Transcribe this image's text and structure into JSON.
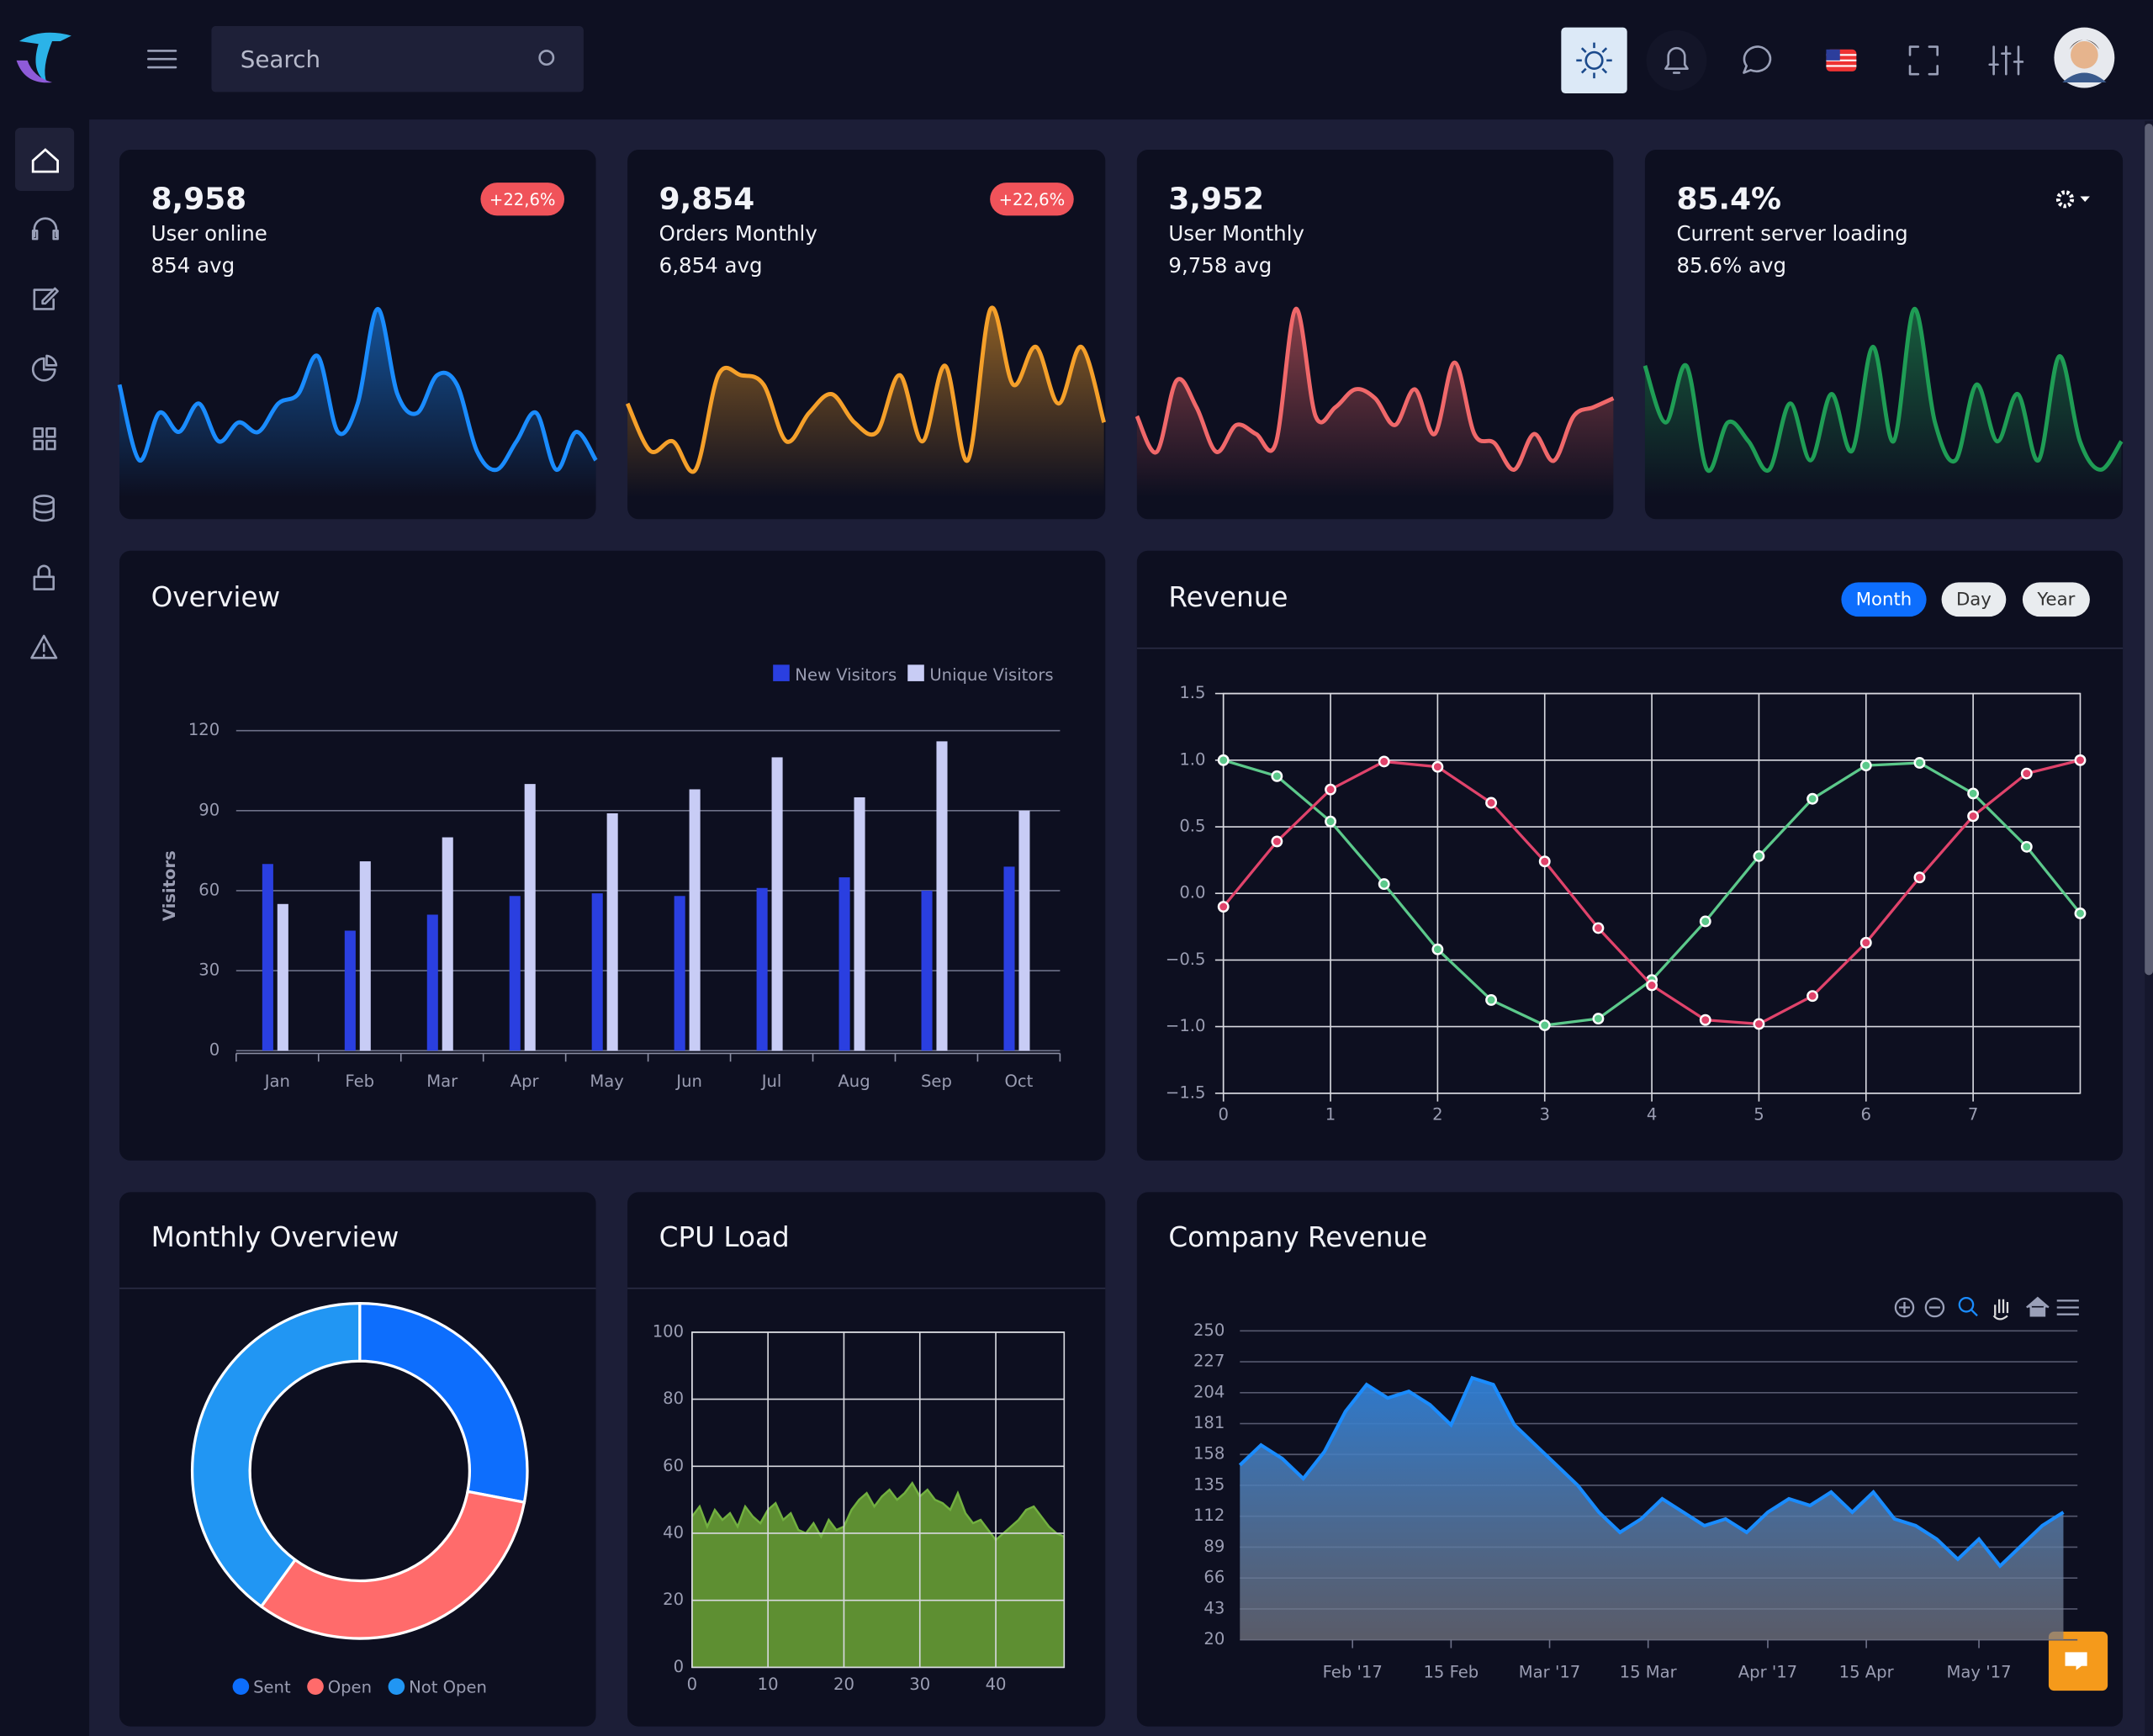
{
  "header": {
    "search_placeholder": "Search"
  },
  "stat_cards": [
    {
      "value": "8,958",
      "badge": "+22,6%",
      "label": "User online",
      "avg": "854 avg"
    },
    {
      "value": "9,854",
      "badge": "+22,6%",
      "label": "Orders Monthly",
      "avg": "6,854 avg"
    },
    {
      "value": "3,952",
      "label": "User Monthly",
      "avg": "9,758 avg"
    },
    {
      "value": "85.4%",
      "label": "Current server loading",
      "avg": "85.6% avg"
    }
  ],
  "chart_data": [
    {
      "type": "area",
      "color": "#1a8cff",
      "values": [
        55,
        15,
        40,
        30,
        45,
        25,
        35,
        30,
        45,
        50,
        70,
        30,
        45,
        95,
        50,
        40,
        60,
        55,
        20,
        10,
        25,
        40,
        10,
        30,
        15
      ]
    },
    {
      "type": "area",
      "color": "#f5a02a",
      "values": [
        40,
        15,
        20,
        5,
        55,
        55,
        50,
        20,
        35,
        45,
        30,
        25,
        55,
        20,
        60,
        10,
        90,
        50,
        70,
        40,
        70,
        30
      ]
    },
    {
      "type": "area",
      "color": "#f0686a",
      "values": [
        40,
        20,
        60,
        45,
        20,
        35,
        30,
        25,
        100,
        40,
        45,
        55,
        50,
        35,
        55,
        30,
        70,
        30,
        25,
        10,
        30,
        15,
        40,
        45,
        50
      ]
    },
    {
      "type": "area",
      "color": "#1f9d55",
      "values": [
        70,
        40,
        70,
        15,
        40,
        30,
        15,
        50,
        20,
        55,
        25,
        80,
        30,
        100,
        40,
        20,
        60,
        30,
        55,
        20,
        75,
        30,
        15,
        30
      ]
    },
    {
      "type": "bar",
      "title": "Overview",
      "y_label": "Visitors",
      "categories": [
        "Jan",
        "Feb",
        "Mar",
        "Apr",
        "May",
        "Jun",
        "Jul",
        "Aug",
        "Sep",
        "Oct"
      ],
      "series": [
        {
          "name": "New Visitors",
          "color": "#2a3fe0",
          "values": [
            70,
            45,
            51,
            58,
            59,
            58,
            61,
            65,
            60,
            69
          ]
        },
        {
          "name": "Unique Visitors",
          "color": "#c8ccf5",
          "values": [
            55,
            71,
            80,
            100,
            89,
            98,
            110,
            95,
            116,
            90
          ]
        }
      ],
      "ylim": [
        0,
        120
      ],
      "yticks": [
        0,
        30,
        60,
        90,
        120
      ],
      "grid": true
    },
    {
      "type": "line",
      "title": "Revenue",
      "buttons": [
        "Month",
        "Day",
        "Year"
      ],
      "x": [
        0,
        0.5,
        1,
        1.5,
        2,
        2.5,
        3,
        3.5,
        4,
        4.5,
        5,
        5.5,
        6,
        6.5,
        7,
        7.5,
        8
      ],
      "series": [
        {
          "color": "#5cc98b",
          "values": [
            1.0,
            0.88,
            0.54,
            0.07,
            -0.42,
            -0.8,
            -0.99,
            -0.94,
            -0.65,
            -0.21,
            0.28,
            0.71,
            0.96,
            0.98,
            0.75,
            0.35,
            -0.15
          ]
        },
        {
          "color": "#e0436b",
          "values": [
            -0.1,
            0.39,
            0.78,
            0.99,
            0.95,
            0.68,
            0.24,
            -0.26,
            -0.69,
            -0.95,
            -0.98,
            -0.77,
            -0.37,
            0.12,
            0.58,
            0.9,
            1.0
          ]
        }
      ],
      "xlim": [
        0,
        8
      ],
      "xticks": [
        0,
        1,
        2,
        3,
        4,
        5,
        6,
        7
      ],
      "ylim": [
        -1.5,
        1.5
      ],
      "yticks": [
        {
          "value": -1.5,
          "label": "−1.5"
        },
        {
          "value": -1.0,
          "label": "−1.0"
        },
        {
          "value": -0.5,
          "label": "−0.5"
        },
        {
          "value": 0,
          "label": "0.0"
        },
        0.5,
        {
          "value": 1.0,
          "label": "1.0"
        },
        1.5
      ],
      "grid": true
    },
    {
      "type": "pie",
      "title": "Monthly Overview",
      "categories": [
        "Sent",
        "Open",
        "Not Open"
      ],
      "values": [
        28,
        32,
        40
      ],
      "colors": [
        "#0d6efd",
        "#ff6b6b",
        "#2196f3"
      ]
    },
    {
      "type": "area",
      "title": "CPU Load",
      "color": "#5e8f32",
      "x": [
        0,
        1,
        2,
        3,
        4,
        5,
        6,
        7,
        8,
        9,
        10,
        11,
        12,
        13,
        14,
        15,
        16,
        17,
        18,
        19,
        20,
        21,
        22,
        23,
        24,
        25,
        26,
        27,
        28,
        29,
        30,
        31,
        32,
        33,
        34,
        35,
        36,
        37,
        38,
        39,
        40,
        41,
        42,
        43,
        44,
        45,
        46,
        47,
        48,
        49
      ],
      "values": [
        45,
        48,
        42,
        47,
        44,
        46,
        42,
        48,
        45,
        43,
        47,
        49,
        44,
        46,
        41,
        40,
        43,
        39,
        44,
        41,
        42,
        47,
        50,
        52,
        48,
        51,
        53,
        50,
        52,
        55,
        51,
        53,
        50,
        49,
        47,
        52,
        46,
        43,
        44,
        41,
        38,
        40,
        42,
        44,
        47,
        48,
        45,
        42,
        40,
        39
      ],
      "xlim": [
        0,
        49
      ],
      "xticks": [
        0,
        10,
        20,
        30,
        40
      ],
      "ylim": [
        0,
        100
      ],
      "yticks": [
        0,
        20,
        40,
        60,
        80,
        100
      ],
      "grid": true
    },
    {
      "type": "area",
      "title": "Company Revenue",
      "color": "#1a8cff",
      "x": [
        "2017-01-16",
        "2017-01-19",
        "2017-01-22",
        "2017-01-25",
        "2017-01-28",
        "2017-01-31",
        "2017-02-03",
        "2017-02-06",
        "2017-02-09",
        "2017-02-12",
        "2017-02-15",
        "2017-02-18",
        "2017-02-21",
        "2017-02-24",
        "2017-02-27",
        "2017-03-02",
        "2017-03-05",
        "2017-03-08",
        "2017-03-11",
        "2017-03-14",
        "2017-03-17",
        "2017-03-20",
        "2017-03-23",
        "2017-03-26",
        "2017-03-29",
        "2017-04-01",
        "2017-04-04",
        "2017-04-07",
        "2017-04-10",
        "2017-04-13",
        "2017-04-16",
        "2017-04-19",
        "2017-04-22",
        "2017-04-25",
        "2017-04-28",
        "2017-05-01",
        "2017-05-04",
        "2017-05-07",
        "2017-05-10",
        "2017-05-13"
      ],
      "values": [
        150,
        165,
        155,
        140,
        160,
        190,
        210,
        200,
        205,
        195,
        180,
        215,
        210,
        180,
        165,
        150,
        135,
        115,
        100,
        110,
        125,
        115,
        105,
        110,
        100,
        115,
        125,
        120,
        130,
        115,
        130,
        110,
        105,
        95,
        80,
        95,
        75,
        90,
        105,
        115
      ],
      "xlim": [
        "2017-01-16",
        "2017-05-15"
      ],
      "xticks": [
        {
          "value": "2017-02-01",
          "label": "Feb '17"
        },
        {
          "value": "2017-02-15",
          "label": "15 Feb"
        },
        {
          "value": "2017-03-01",
          "label": "Mar '17"
        },
        {
          "value": "2017-03-15",
          "label": "15 Mar"
        },
        {
          "value": "2017-04-01",
          "label": "Apr '17"
        },
        {
          "value": "2017-04-15",
          "label": "15 Apr"
        },
        {
          "value": "2017-05-01",
          "label": "May '17"
        }
      ],
      "ylim": [
        20,
        250
      ],
      "yticks": [
        20,
        43,
        66,
        89,
        112,
        135,
        158,
        181,
        204,
        227,
        250
      ],
      "grid": true
    }
  ]
}
